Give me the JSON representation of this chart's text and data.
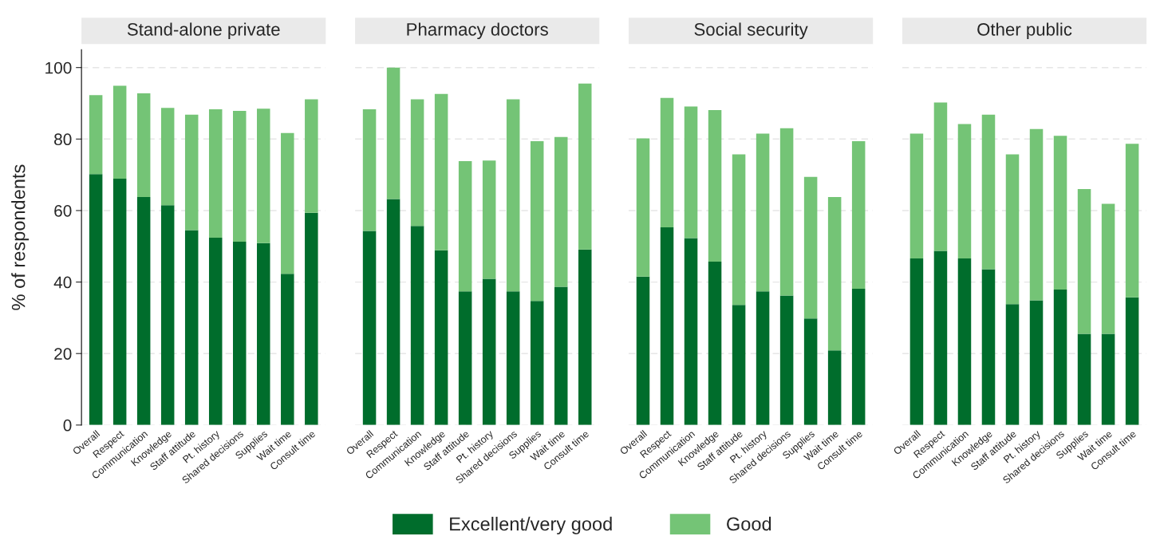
{
  "chart_data": [
    {
      "type": "bar",
      "stacked": true,
      "title": "Stand-alone private",
      "ylabel": "% of respondents",
      "categories": [
        "Overall",
        "Respect",
        "Communication",
        "Knowledge",
        "Staff attitude",
        "Pt. history",
        "Shared decisions",
        "Supplies",
        "Wait time",
        "Consult time"
      ],
      "ylim": [
        0,
        105
      ],
      "yticks": [
        0,
        20,
        40,
        60,
        80,
        100
      ],
      "grid": "y",
      "legend": "bottom",
      "series": [
        {
          "name": "Excellent/very good",
          "color": "#006d2c",
          "values": [
            70.2,
            68.9,
            63.8,
            61.5,
            54.5,
            52.4,
            51.3,
            50.9,
            42.3,
            59.4
          ]
        },
        {
          "name": "Good",
          "color": "#74c476",
          "values": [
            22.1,
            26.0,
            29.0,
            27.2,
            32.3,
            35.9,
            36.6,
            37.6,
            39.4,
            31.7
          ]
        }
      ]
    },
    {
      "type": "bar",
      "stacked": true,
      "title": "Pharmacy doctors",
      "categories": [
        "Overall",
        "Respect",
        "Communication",
        "Knowledge",
        "Staff attitude",
        "Pt. history",
        "Shared decisions",
        "Supplies",
        "Wait time",
        "Consult time"
      ],
      "yticks": [
        0,
        20,
        40,
        60,
        80,
        100
      ],
      "grid": "y",
      "tick_labels": "x",
      "series": [
        {
          "color": "#006d2c",
          "values": [
            54.3,
            63.2,
            55.7,
            48.9,
            37.4,
            40.9,
            37.4,
            34.7,
            38.7,
            49.1
          ]
        },
        {
          "color": "#74c476",
          "values": [
            34.0,
            36.8,
            35.4,
            43.7,
            36.4,
            33.1,
            53.7,
            44.7,
            41.9,
            46.4
          ]
        }
      ]
    },
    {
      "type": "bar",
      "stacked": true,
      "title": "Social security",
      "categories": [
        "Overall",
        "Respect",
        "Communication",
        "Knowledge",
        "Staff attitude",
        "Pt. history",
        "Shared decisions",
        "Supplies",
        "Wait time",
        "Consult time"
      ],
      "yticks": [
        0,
        20,
        40,
        60,
        80,
        100
      ],
      "grid": "y",
      "tick_labels": "x",
      "series": [
        {
          "color": "#006d2c",
          "values": [
            41.5,
            55.3,
            52.3,
            45.7,
            33.6,
            37.4,
            36.2,
            29.8,
            20.9,
            38.1
          ]
        },
        {
          "color": "#74c476",
          "values": [
            38.7,
            36.2,
            36.8,
            42.4,
            42.1,
            44.1,
            46.8,
            39.6,
            42.9,
            41.3
          ]
        }
      ]
    },
    {
      "type": "bar",
      "stacked": true,
      "title": "Other public",
      "categories": [
        "Overall",
        "Respect",
        "Communication",
        "Knowledge",
        "Staff attitude",
        "Pt. history",
        "Shared decisions",
        "Supplies",
        "Wait time",
        "Consult time"
      ],
      "yticks": [
        0,
        20,
        40,
        60,
        80,
        100
      ],
      "grid": "y",
      "tick_labels": "x",
      "series": [
        {
          "color": "#006d2c",
          "values": [
            46.6,
            48.7,
            46.6,
            43.6,
            33.8,
            34.9,
            37.9,
            25.5,
            25.5,
            35.7
          ]
        },
        {
          "color": "#74c476",
          "values": [
            34.9,
            41.5,
            37.6,
            43.2,
            41.9,
            47.9,
            43.0,
            40.5,
            36.4,
            43.0
          ]
        }
      ]
    }
  ]
}
